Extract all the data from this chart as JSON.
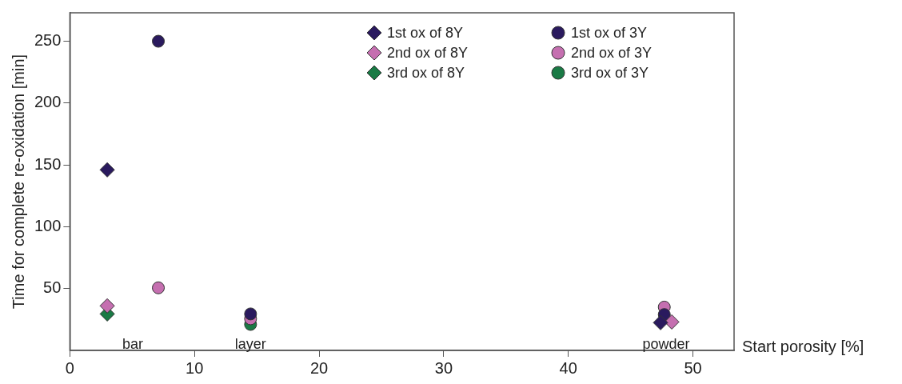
{
  "chart_data": {
    "type": "scatter",
    "xlabel": "Start porosity [%]",
    "ylabel": "Time for complete re-oxidation [min]",
    "xlim": [
      0,
      53.3
    ],
    "xticks": [
      0,
      10,
      20,
      30,
      40,
      50
    ],
    "ylim": [
      0,
      273
    ],
    "yticks": [
      50,
      100,
      150,
      200,
      250
    ],
    "grid": false,
    "legend": "top right",
    "series": [
      {
        "name": "1st ox of 8Y",
        "color": "#2a1a5e",
        "marker": "diamond",
        "x": [
          3,
          47.4
        ],
        "values": [
          146,
          22.4
        ]
      },
      {
        "name": "2nd ox of 8Y",
        "color": "#c56fb0",
        "marker": "diamond",
        "x": [
          3,
          48.3
        ],
        "values": [
          36,
          23
        ]
      },
      {
        "name": "3rd ox of 8Y",
        "color": "#1a7a45",
        "marker": "diamond",
        "x": [
          3
        ],
        "values": [
          29.5
        ]
      },
      {
        "name": "1st ox of 3Y",
        "color": "#2a1a5e",
        "marker": "circle",
        "x": [
          7.1,
          14.5,
          47.7
        ],
        "values": [
          250,
          29.5,
          29
        ]
      },
      {
        "name": "2nd ox of 3Y",
        "color": "#c56fb0",
        "marker": "circle",
        "x": [
          7.1,
          14.5,
          47.7
        ],
        "values": [
          50.6,
          25.6,
          35
        ]
      },
      {
        "name": "3rd ox of 3Y",
        "color": "#1a7a45",
        "marker": "circle",
        "x": [
          14.5
        ],
        "values": [
          21
        ]
      }
    ],
    "annotations": [
      "bar",
      "layer",
      "powder"
    ]
  }
}
